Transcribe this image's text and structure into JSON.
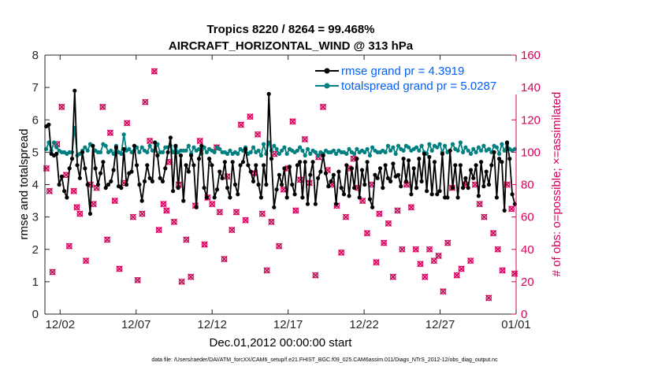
{
  "chart_data": {
    "type": "line",
    "title": "Tropics 8220 / 8264 = 99.468%",
    "subtitle": "AIRCRAFT_HORIZONTAL_WIND @ 313 hPa",
    "xlabel": "Dec.01,2012 00:00:00 start",
    "ylabel_left": "rmse and totalspread",
    "ylabel_right": "# of obs: o=possible; ×=assimilated",
    "footnote": "data file: /Users/raeder/DAI/ATM_forcXX/CAM6_setup/f.e21.FHIST_BGC.f09_025.CAM6assim.011/Diags_NTrS_2012-12/obs_diag_output.nc",
    "xlim": [
      0,
      31
    ],
    "ylim_left": [
      0,
      8
    ],
    "ylim_right": [
      0,
      160
    ],
    "x_ticks": [
      {
        "value": 1,
        "label": "12/02"
      },
      {
        "value": 6,
        "label": "12/07"
      },
      {
        "value": 11,
        "label": "12/12"
      },
      {
        "value": 16,
        "label": "12/17"
      },
      {
        "value": 21,
        "label": "12/22"
      },
      {
        "value": 26,
        "label": "12/27"
      },
      {
        "value": 31,
        "label": "01/01"
      }
    ],
    "y_ticks_left": [
      "0",
      "1",
      "2",
      "3",
      "4",
      "5",
      "6",
      "7",
      "8"
    ],
    "y_ticks_right": [
      "0",
      "20",
      "40",
      "60",
      "80",
      "100",
      "120",
      "140",
      "160"
    ],
    "legend": {
      "location": "top-right",
      "entries": [
        "rmse grand pr = 4.3919",
        "totalspread grand pr = 5.0287"
      ]
    },
    "colors": {
      "rmse": "#000000",
      "totalspread": "#008080",
      "obs": "#d6005a"
    },
    "series": [
      {
        "name": "rmse",
        "values": [
          5.8,
          5.85,
          4.95,
          4.9,
          4.95,
          4.0,
          4.25,
          3.8,
          3.6,
          4.5,
          4.8,
          6.9,
          4.6,
          4.2,
          5.0,
          4.5,
          4.0,
          3.1,
          5.2,
          4.5,
          4.0,
          4.35,
          4.7,
          3.9,
          4.0,
          4.1,
          4.45,
          5.15,
          3.95,
          3.9,
          5.1,
          4.0,
          4.35,
          4.4,
          5.2,
          4.6,
          4.0,
          3.5,
          4.1,
          4.6,
          4.2,
          4.1,
          5.3,
          4.9,
          4.2,
          4.1,
          4.5,
          5.0,
          5.45,
          3.8,
          5.2,
          3.9,
          4.9,
          3.5,
          4.6,
          4.4,
          4.9,
          4.6,
          3.3,
          4.8,
          5.2,
          3.9,
          3.6,
          4.8,
          4.6,
          3.6,
          3.85,
          4.4,
          4.2,
          4.7,
          3.9,
          3.6,
          4.7,
          4.0,
          3.7,
          4.6,
          4.7,
          5.1,
          4.6,
          4.4,
          4.1,
          4.6,
          4.0,
          3.6,
          4.6,
          4.0,
          6.8,
          4.8,
          3.3,
          3.85,
          4.3,
          4.0,
          4.5,
          3.6,
          4.55,
          4.0,
          3.7,
          4.6,
          4.7,
          3.6,
          4.7,
          3.4,
          4.3,
          4.7,
          3.4,
          4.2,
          4.4,
          4.9,
          4.35,
          3.95,
          4.1,
          4.3,
          3.4,
          4.4,
          3.9,
          3.7,
          4.6,
          3.65,
          4.5,
          3.9,
          4.8,
          3.6,
          4.45,
          4.0,
          4.7,
          3.55,
          3.3,
          4.3,
          4.2,
          4.5,
          3.9,
          4.6,
          4.2,
          4.1,
          4.65,
          4.25,
          4.3,
          3.95,
          4.8,
          4.1,
          4.75,
          3.7,
          4.5,
          3.9,
          4.8,
          4.1,
          4.95,
          3.8,
          4.85,
          3.7,
          4.7,
          3.7,
          3.8,
          4.95,
          3.6,
          3.6,
          5.05,
          3.9,
          4.6,
          3.6,
          4.6,
          3.9,
          4.2,
          3.9,
          4.45,
          4.2,
          4.6,
          3.65,
          4.7,
          3.95,
          4.4,
          4.0,
          4.6,
          5.0,
          3.6,
          4.8,
          4.7,
          3.2,
          5.3,
          4.8,
          3.7,
          3.4
        ]
      },
      {
        "name": "totalspread",
        "values": [
          5.1,
          5.3,
          5.05,
          5.3,
          5.15,
          5.05,
          5.0,
          5.0,
          4.95,
          5.0,
          5.0,
          5.75,
          4.9,
          4.95,
          5.05,
          5.15,
          5.05,
          5.25,
          5.2,
          5.05,
          5.0,
          5.0,
          5.25,
          5.2,
          5.0,
          5.05,
          4.95,
          5.2,
          5.0,
          4.95,
          5.55,
          5.05,
          5.1,
          5.0,
          5.05,
          5.15,
          5.0,
          5.15,
          5.05,
          5.0,
          5.2,
          5.05,
          5.05,
          5.25,
          5.0,
          5.0,
          5.15,
          5.15,
          5.2,
          5.0,
          5.15,
          5.0,
          5.05,
          5.05,
          5.05,
          5.2,
          4.95,
          5.15,
          5.05,
          5.1,
          4.95,
          5.15,
          5.0,
          5.1,
          5.05,
          5.0,
          5.15,
          5.1,
          5.0,
          5.0,
          4.95,
          5.05,
          4.95,
          5.0,
          4.95,
          5.1,
          5.05,
          5.15,
          4.95,
          5.0,
          5.15,
          5.0,
          5.05,
          4.9,
          5.25,
          4.95,
          5.3,
          5.05,
          5.2,
          5.1,
          4.95,
          5.05,
          5.15,
          4.95,
          5.1,
          5.05,
          5.0,
          5.05,
          5.15,
          5.05,
          4.9,
          5.1,
          4.95,
          5.05,
          5.0,
          4.9,
          5.0,
          4.95,
          5.05,
          5.0,
          5.0,
          5.05,
          4.95,
          5.05,
          5.0,
          5.0,
          4.95,
          5.1,
          5.0,
          4.95,
          5.1,
          5.0,
          5.05,
          5.0,
          5.1,
          4.9,
          5.15,
          5.05,
          5.0,
          5.0,
          5.05,
          5.0,
          5.2,
          5.05,
          5.15,
          4.95,
          5.2,
          5.1,
          5.05,
          5.2,
          5.15,
          5.05,
          5.1,
          5.15,
          5.05,
          5.2,
          5.0,
          4.95,
          5.25,
          5.05,
          5.2,
          5.15,
          5.25,
          5.0,
          5.2,
          5.0,
          5.05,
          5.25,
          5.1,
          5.05,
          5.3,
          5.0,
          5.15,
          5.05,
          4.95,
          5.1,
          5.0,
          5.15,
          5.05,
          5.2,
          5.05,
          5.1,
          5.0,
          5.2,
          5.15,
          4.95,
          5.25,
          5.05,
          5.25,
          5.1,
          5.05,
          5.1
        ]
      },
      {
        "name": "# of obs",
        "x": [
          0.1,
          0.3,
          0.5,
          0.8,
          1.1,
          1.4,
          1.6,
          1.9,
          2.1,
          2.3,
          2.7,
          3.0,
          3.2,
          3.4,
          3.8,
          4.1,
          4.3,
          4.6,
          4.9,
          5.2,
          5.4,
          5.8,
          6.1,
          6.4,
          6.6,
          6.9,
          7.2,
          7.5,
          7.8,
          8.0,
          8.2,
          8.5,
          8.8,
          9.0,
          9.3,
          9.6,
          9.9,
          10.2,
          10.5,
          10.7,
          11.0,
          11.3,
          11.5,
          11.8,
          12.0,
          12.3,
          12.6,
          12.9,
          13.2,
          13.5,
          13.8,
          14.0,
          14.3,
          14.6,
          14.9,
          15.1,
          15.4,
          15.7,
          16.0,
          16.3,
          16.5,
          16.8,
          17.1,
          17.4,
          17.8,
          18.0,
          18.3,
          18.6,
          18.9,
          19.2,
          19.5,
          19.8,
          20.0,
          20.3,
          20.6,
          20.9,
          21.2,
          21.5,
          21.8,
          22.0,
          22.3,
          22.6,
          22.9,
          23.2,
          23.5,
          23.8,
          24.1,
          24.4,
          24.7,
          25.0,
          25.3,
          25.6,
          25.9,
          26.2,
          26.5,
          26.8,
          27.1,
          27.4,
          27.7,
          28.0,
          28.3,
          28.6,
          28.9,
          29.2,
          29.5,
          29.8,
          30.1,
          30.4,
          30.7,
          30.9
        ],
        "values": [
          90,
          76,
          26,
          105,
          128,
          86,
          42,
          76,
          66,
          62,
          33,
          80,
          68,
          78,
          128,
          46,
          112,
          70,
          28,
          81,
          118,
          60,
          21,
          62,
          131,
          107,
          150,
          52,
          68,
          64,
          94,
          57,
          80,
          20,
          46,
          23,
          67,
          107,
          43,
          72,
          68,
          103,
          63,
          34,
          85,
          52,
          63,
          117,
          58,
          122,
          87,
          111,
          62,
          27,
          57,
          99,
          42,
          77,
          90,
          119,
          64,
          83,
          108,
          81,
          24,
          97,
          128,
          89,
          80,
          67,
          38,
          60,
          90,
          96,
          78,
          70,
          50,
          80,
          32,
          62,
          44,
          56,
          23,
          64,
          40,
          80,
          66,
          40,
          31,
          23,
          40,
          33,
          36,
          14,
          44,
          78,
          24,
          28,
          80,
          33,
          80,
          68,
          60,
          10,
          50,
          40,
          27,
          80,
          65,
          25
        ]
      }
    ]
  }
}
